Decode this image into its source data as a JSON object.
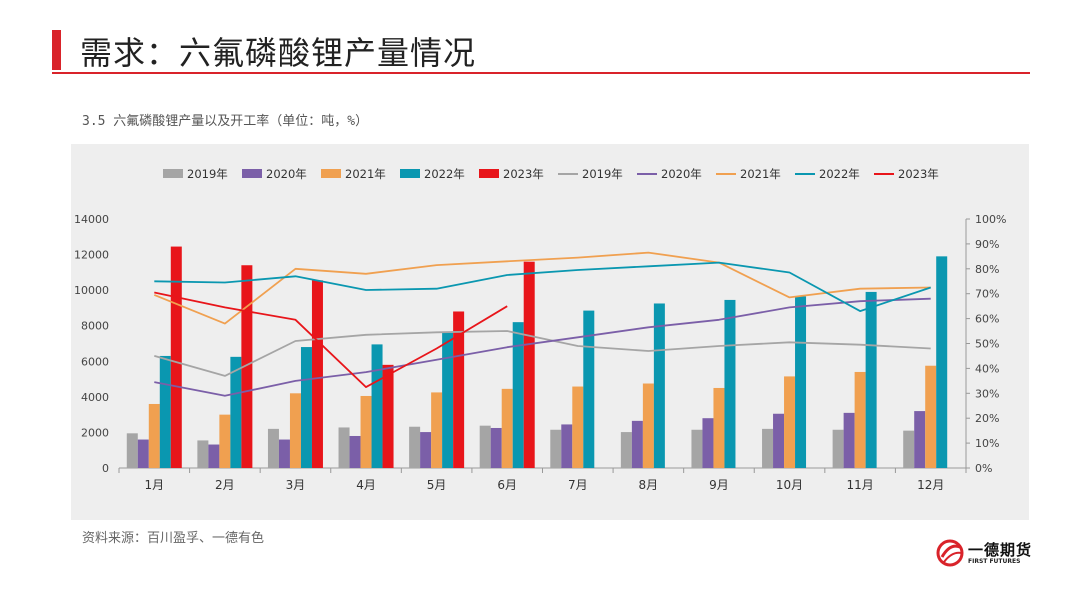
{
  "page": {
    "title": "需求：六氟磷酸锂产量情况",
    "caption": "3.5 六氟磷酸锂产量以及开工率（单位：吨，%）",
    "source": "资料来源：百川盈孚、一德有色"
  },
  "brand": {
    "name": "一德期货",
    "sub": "FIRST FUTURES",
    "accent": "#d9232a"
  },
  "chart_data": {
    "type": "bar",
    "categories": [
      "1月",
      "2月",
      "3月",
      "4月",
      "5月",
      "6月",
      "7月",
      "8月",
      "9月",
      "10月",
      "11月",
      "12月"
    ],
    "ylim": [
      0,
      14000
    ],
    "yticks": [
      "0",
      "2000",
      "4000",
      "6000",
      "8000",
      "10000",
      "12000",
      "14000"
    ],
    "y2lim": [
      0,
      100
    ],
    "y2ticks": [
      "0%",
      "10%",
      "20%",
      "30%",
      "40%",
      "50%",
      "60%",
      "70%",
      "80%",
      "90%",
      "100%"
    ],
    "grid": false,
    "legend_position": "top",
    "bar_series": [
      {
        "name": "2019年",
        "color": "#a5a5a5",
        "values": [
          1950,
          1550,
          2200,
          2280,
          2320,
          2380,
          2150,
          2020,
          2150,
          2200,
          2150,
          2100
        ]
      },
      {
        "name": "2020年",
        "color": "#7b5fa8",
        "values": [
          1600,
          1320,
          1600,
          1800,
          2020,
          2250,
          2450,
          2650,
          2800,
          3050,
          3100,
          3200
        ]
      },
      {
        "name": "2021年",
        "color": "#f0a050",
        "values": [
          3600,
          3000,
          4200,
          4050,
          4250,
          4450,
          4580,
          4750,
          4500,
          5150,
          5400,
          5750
        ]
      },
      {
        "name": "2022年",
        "color": "#0a97b0",
        "values": [
          6300,
          6250,
          6800,
          6950,
          7600,
          8200,
          8850,
          9250,
          9450,
          9650,
          9900,
          11900
        ]
      },
      {
        "name": "2023年",
        "color": "#e8151a",
        "values": [
          12450,
          11400,
          10550,
          5800,
          8800,
          11600,
          null,
          null,
          null,
          null,
          null,
          null
        ]
      }
    ],
    "line_series": [
      {
        "name": "2019年",
        "color": "#a5a5a5",
        "values": [
          45,
          37,
          51,
          53.5,
          54.5,
          55,
          49,
          47,
          49,
          50.5,
          49.5,
          48
        ]
      },
      {
        "name": "2020年",
        "color": "#7b5fa8",
        "values": [
          34.5,
          29,
          35,
          38.5,
          43.5,
          48.5,
          52.5,
          56.5,
          59.5,
          64.5,
          67,
          68
        ]
      },
      {
        "name": "2021年",
        "color": "#f0a050",
        "values": [
          69.5,
          58,
          80,
          78,
          81.5,
          83,
          84.5,
          86.5,
          82.5,
          68.5,
          72,
          72.5
        ]
      },
      {
        "name": "2022年",
        "color": "#0a97b0",
        "values": [
          75,
          74.5,
          77,
          71.5,
          72,
          77.5,
          79.5,
          81,
          82.5,
          78.5,
          63,
          72.5
        ]
      },
      {
        "name": "2023年",
        "color": "#e8151a",
        "values": [
          70.5,
          64.5,
          59.5,
          32.5,
          48,
          65,
          null,
          null,
          null,
          null,
          null,
          null
        ]
      }
    ]
  }
}
